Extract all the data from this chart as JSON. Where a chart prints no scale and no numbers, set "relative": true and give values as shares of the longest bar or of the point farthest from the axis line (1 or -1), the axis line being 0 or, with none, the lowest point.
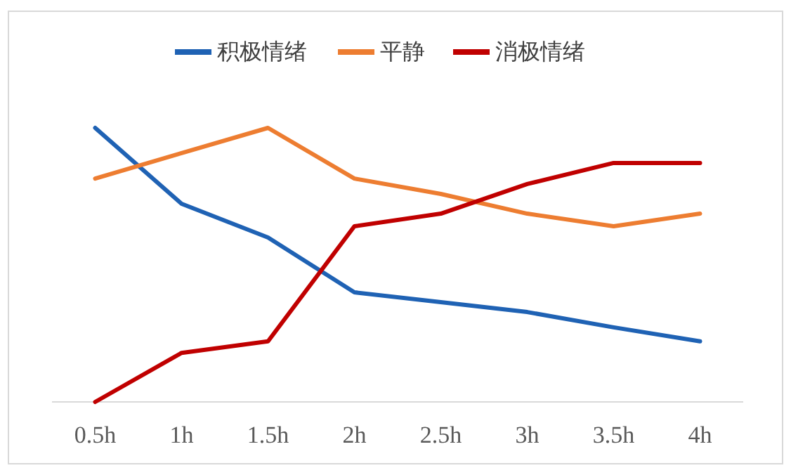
{
  "chart_data": {
    "type": "line",
    "relative": true,
    "legend": "top",
    "line_style": "solid",
    "categories": [
      "0.5h",
      "1h",
      "1.5h",
      "2h",
      "2.5h",
      "3h",
      "3.5h",
      "4h"
    ],
    "series": [
      {
        "name": "积极情绪",
        "color": "#1f62b4",
        "values": [
          1.0,
          0.723,
          0.6,
          0.4,
          0.364,
          0.328,
          0.272,
          0.221
        ]
      },
      {
        "name": "平静",
        "color": "#ed7d31",
        "values": [
          0.815,
          0.908,
          1.0,
          0.815,
          0.759,
          0.687,
          0.641,
          0.687
        ]
      },
      {
        "name": "消极情绪",
        "color": "#c00000",
        "values": [
          0,
          0.179,
          0.221,
          0.641,
          0.687,
          0.795,
          0.872,
          0.872
        ]
      }
    ]
  }
}
